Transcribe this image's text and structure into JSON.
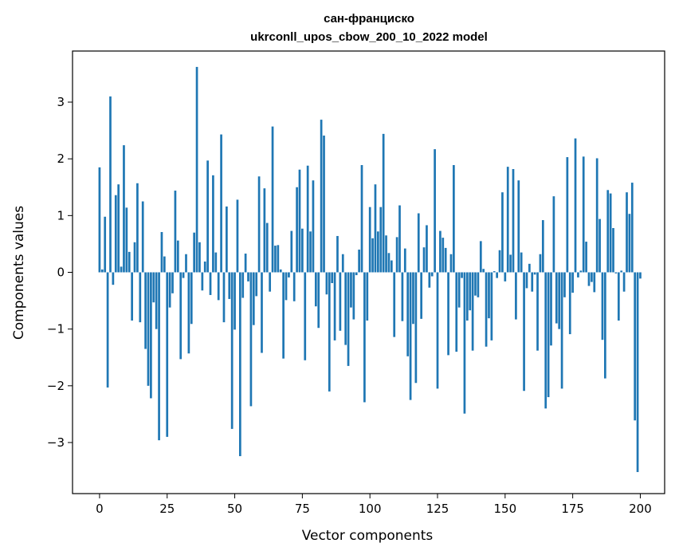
{
  "chart_data": {
    "type": "bar",
    "title": "сан-франциско",
    "subtitle": "ukrconll_upos_cbow_200_10_2022 model",
    "xlabel": "Vector components",
    "ylabel": "Components values",
    "xlim": [
      -10,
      209
    ],
    "ylim": [
      -3.9,
      3.9
    ],
    "x_ticks": [
      0,
      25,
      50,
      75,
      100,
      125,
      150,
      175,
      200
    ],
    "y_ticks": [
      -3,
      -2,
      -1,
      0,
      1,
      2,
      3
    ],
    "x_tick_labels": [
      "0",
      "25",
      "50",
      "75",
      "100",
      "125",
      "150",
      "175",
      "200"
    ],
    "y_tick_labels": [
      "−3",
      "−2",
      "−1",
      "0",
      "1",
      "2",
      "3"
    ],
    "grid": false,
    "legend": "none",
    "bar_color": "#1f77b4",
    "values": [
      1.85,
      0.05,
      0.98,
      -2.03,
      3.1,
      -0.22,
      1.36,
      1.55,
      0.1,
      2.24,
      1.14,
      0.36,
      -0.85,
      0.53,
      1.57,
      -0.88,
      1.25,
      -1.35,
      -2.0,
      -2.22,
      -0.53,
      -1.0,
      -2.96,
      0.71,
      0.28,
      -2.9,
      -0.62,
      -0.37,
      1.44,
      0.56,
      -1.53,
      -0.1,
      0.32,
      -1.43,
      -0.91,
      0.7,
      3.62,
      0.53,
      -0.32,
      0.19,
      1.97,
      -0.4,
      1.71,
      0.35,
      -0.49,
      2.43,
      -0.88,
      1.16,
      -0.47,
      -2.76,
      -1.01,
      1.28,
      -3.24,
      -0.45,
      0.33,
      -0.16,
      -2.36,
      -0.93,
      -0.42,
      1.69,
      -1.42,
      1.48,
      0.87,
      -0.34,
      2.57,
      0.47,
      0.48,
      0.05,
      -1.52,
      -0.49,
      -0.09,
      0.73,
      -0.51,
      1.5,
      1.81,
      0.77,
      -1.55,
      1.88,
      0.72,
      1.62,
      -0.6,
      -0.98,
      2.69,
      2.41,
      -0.39,
      -2.1,
      -0.19,
      -1.2,
      0.64,
      -1.03,
      0.32,
      -1.28,
      -1.65,
      -0.62,
      -0.83,
      -0.05,
      0.4,
      1.89,
      -2.29,
      -0.85,
      1.15,
      0.6,
      1.55,
      0.72,
      1.15,
      2.44,
      0.65,
      0.34,
      0.21,
      -1.14,
      0.62,
      1.18,
      -0.86,
      0.42,
      -1.48,
      -2.25,
      -0.91,
      -1.95,
      1.04,
      -0.82,
      0.44,
      0.83,
      -0.27,
      -0.07,
      2.17,
      -2.05,
      0.73,
      0.61,
      0.43,
      -1.46,
      0.32,
      1.89,
      -1.4,
      -0.62,
      -0.1,
      -2.49,
      -0.85,
      -0.67,
      -1.38,
      -0.41,
      -0.44,
      0.55,
      0.06,
      -1.31,
      -0.81,
      -1.2,
      0.02,
      -0.1,
      0.39,
      1.41,
      -0.16,
      1.86,
      0.31,
      1.82,
      -0.83,
      1.62,
      0.35,
      -2.09,
      -0.28,
      0.15,
      -0.34,
      -0.04,
      -1.38,
      0.32,
      0.92,
      -2.4,
      -2.2,
      -1.29,
      1.34,
      -0.9,
      -1.0,
      -2.05,
      -0.44,
      2.03,
      -1.09,
      -0.36,
      2.36,
      -0.09,
      0.03,
      2.04,
      0.54,
      -0.24,
      -0.17,
      -0.35,
      2.01,
      0.94,
      -1.19,
      -1.87,
      1.45,
      1.39,
      0.78,
      -0.02,
      -0.85,
      0.03,
      -0.34,
      1.41,
      1.03,
      1.58,
      -2.61,
      -3.52,
      -0.11
    ]
  }
}
